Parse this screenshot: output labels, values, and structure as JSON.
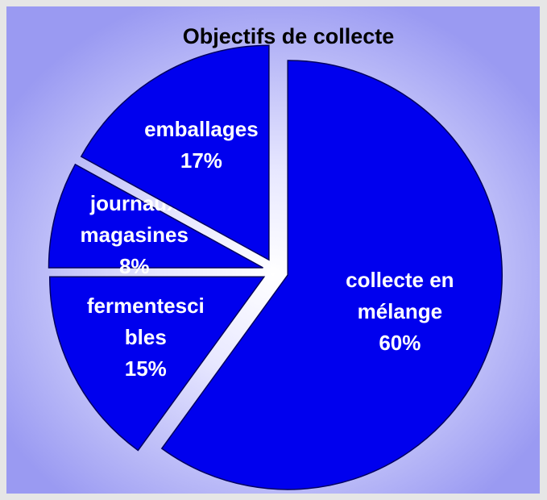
{
  "chart_data": {
    "type": "pie",
    "title": "Objectifs de collecte",
    "categories": [
      "collecte en mélange",
      "fermentescibles",
      "journaux magasines",
      "emballages"
    ],
    "values": [
      60,
      15,
      8,
      17
    ],
    "value_labels": [
      "60%",
      "15%",
      "8%",
      "17%"
    ],
    "color": "#0000ee"
  }
}
